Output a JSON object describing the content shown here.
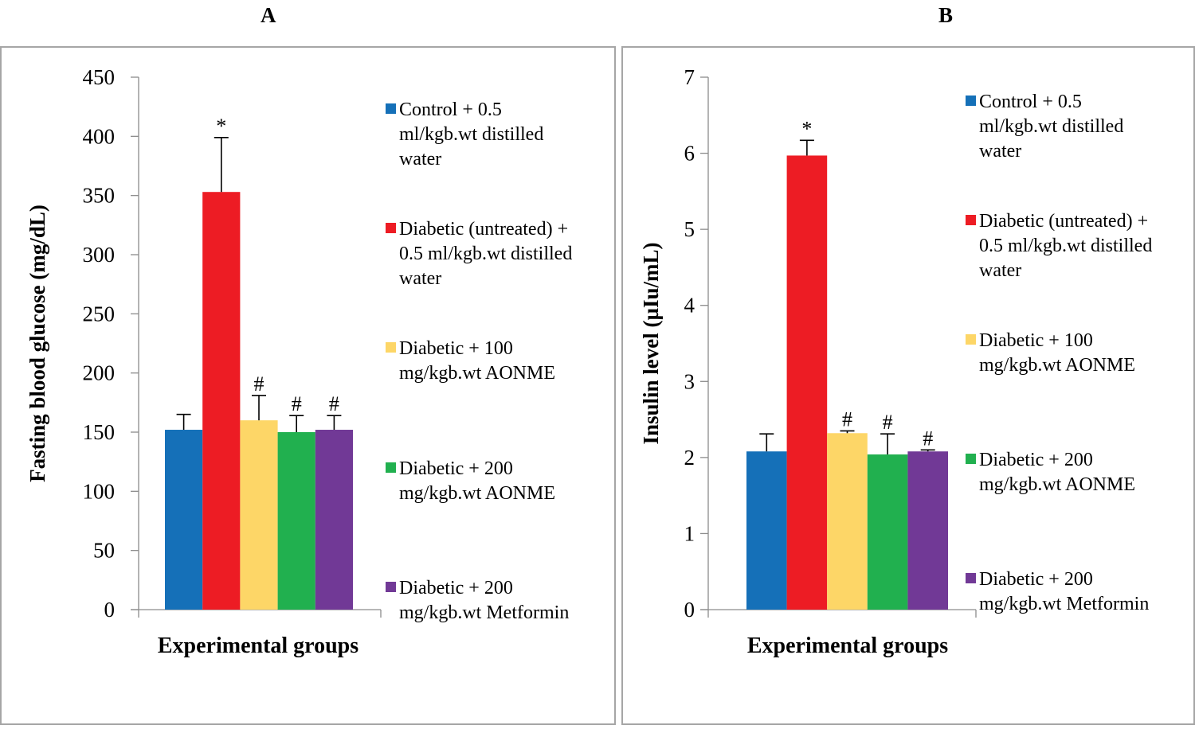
{
  "panels": [
    {
      "letter": "A"
    },
    {
      "letter": "B"
    }
  ],
  "colors": {
    "control": "#1570b8",
    "diabetic": "#ed1c24",
    "aonme100": "#fdd667",
    "aonme200": "#21b04f",
    "metformin": "#713996"
  },
  "chart_data": [
    {
      "type": "bar",
      "panel": "A",
      "title": "",
      "xlabel": "Experimental groups",
      "ylabel": "Fasting blood glucose (mg/dL)",
      "ylim": [
        0,
        450
      ],
      "yticks": [
        0,
        50,
        100,
        150,
        200,
        250,
        300,
        350,
        400,
        450
      ],
      "grid": false,
      "legend_position": "right",
      "series": [
        {
          "name": "Control + 0.5 ml/kgb.wt distilled water",
          "legend_lines": [
            "Control + 0.5",
            "ml/kgb.wt distilled",
            "water"
          ],
          "color_key": "control",
          "value": 152,
          "error": 13,
          "annotation": ""
        },
        {
          "name": "Diabetic (untreated) + 0.5 ml/kgb.wt distilled water",
          "legend_lines": [
            "Diabetic (untreated) +",
            "0.5 ml/kgb.wt distilled",
            "water"
          ],
          "color_key": "diabetic",
          "value": 353,
          "error": 46,
          "annotation": "*"
        },
        {
          "name": "Diabetic + 100 mg/kgb.wt AONME",
          "legend_lines": [
            "Diabetic + 100",
            "mg/kgb.wt AONME"
          ],
          "color_key": "aonme100",
          "value": 160,
          "error": 21,
          "annotation": "#"
        },
        {
          "name": "Diabetic + 200 mg/kgb.wt AONME",
          "legend_lines": [
            "Diabetic + 200",
            "mg/kgb.wt AONME"
          ],
          "color_key": "aonme200",
          "value": 150,
          "error": 14,
          "annotation": "#"
        },
        {
          "name": "Diabetic + 200 mg/kgb.wt Metformin",
          "legend_lines": [
            "Diabetic + 200",
            "mg/kgb.wt Metformin"
          ],
          "color_key": "metformin",
          "value": 152,
          "error": 12,
          "annotation": "#"
        }
      ]
    },
    {
      "type": "bar",
      "panel": "B",
      "title": "",
      "xlabel": "Experimental groups",
      "ylabel": "Insulin  level (µIu/mL)",
      "ylim": [
        0,
        7
      ],
      "yticks": [
        0,
        1,
        2,
        3,
        4,
        5,
        6,
        7
      ],
      "grid": false,
      "legend_position": "right",
      "series": [
        {
          "name": "Control + 0.5 ml/kgb.wt distilled water",
          "legend_lines": [
            "Control + 0.5",
            "ml/kgb.wt distilled",
            "water"
          ],
          "color_key": "control",
          "value": 2.08,
          "error": 0.23,
          "annotation": ""
        },
        {
          "name": "Diabetic (untreated) + 0.5 ml/kgb.wt distilled water",
          "legend_lines": [
            "Diabetic (untreated) +",
            "0.5 ml/kgb.wt distilled",
            "water"
          ],
          "color_key": "diabetic",
          "value": 5.97,
          "error": 0.2,
          "annotation": "*"
        },
        {
          "name": "Diabetic + 100 mg/kgb.wt AONME",
          "legend_lines": [
            "Diabetic + 100",
            "mg/kgb.wt AONME"
          ],
          "color_key": "aonme100",
          "value": 2.32,
          "error": 0.03,
          "annotation": "#"
        },
        {
          "name": "Diabetic + 200 mg/kgb.wt AONME",
          "legend_lines": [
            "Diabetic + 200",
            "mg/kgb.wt AONME"
          ],
          "color_key": "aonme200",
          "value": 2.04,
          "error": 0.27,
          "annotation": "#"
        },
        {
          "name": "Diabetic + 200 mg/kgb.wt Metformin",
          "legend_lines": [
            "Diabetic + 200",
            "mg/kgb.wt Metformin"
          ],
          "color_key": "metformin",
          "value": 2.08,
          "error": 0.02,
          "annotation": "#"
        }
      ]
    }
  ]
}
